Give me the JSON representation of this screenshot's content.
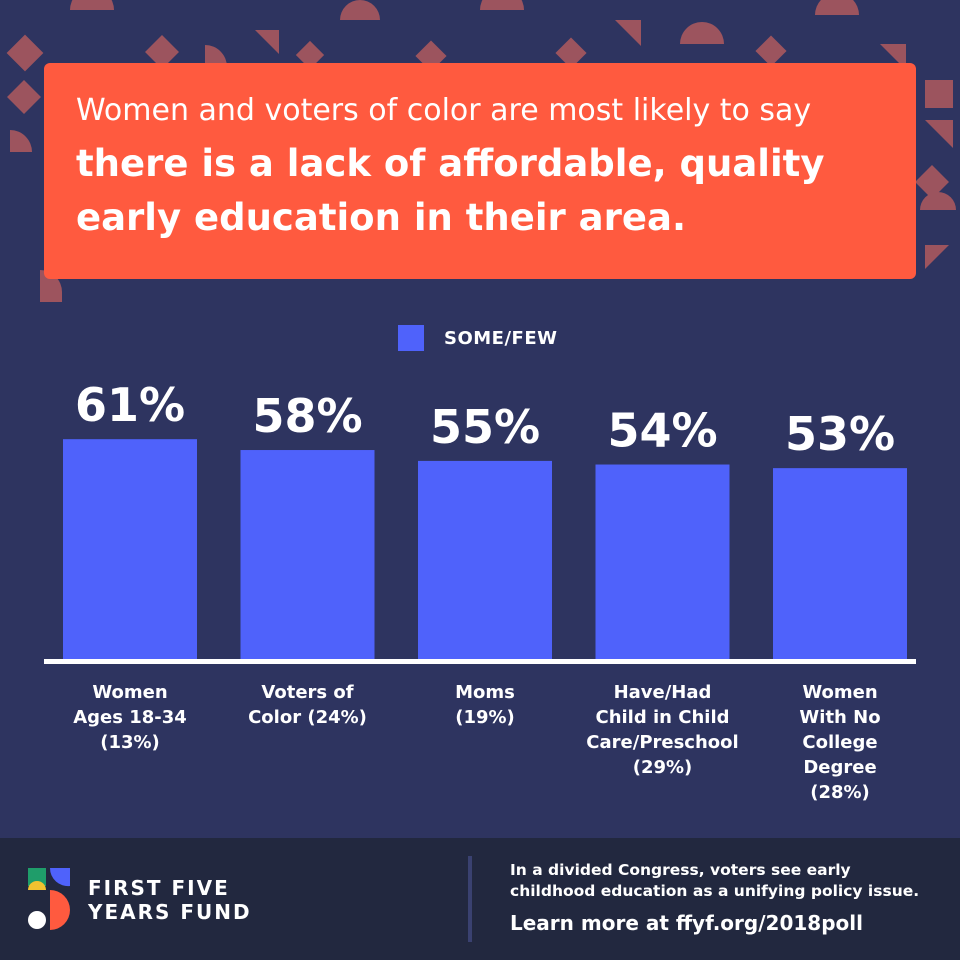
{
  "headline": {
    "light": "Women and voters of color are most likely to say",
    "bold_line1": "there is a lack of affordable, quality",
    "bold_line2": "early education in their area."
  },
  "colors": {
    "background": "#2e3460",
    "headline_box": "#ff5a3f",
    "bar": "#4f62fb",
    "footer": "#22283f",
    "shape": "#b85656"
  },
  "chart_data": {
    "type": "bar",
    "legend": {
      "label": "SOME/FEW",
      "position": "top-center"
    },
    "categories": [
      [
        "Women",
        "Ages 18-34",
        "(13%)"
      ],
      [
        "Voters of",
        "Color (24%)"
      ],
      [
        "Moms",
        "(19%)"
      ],
      [
        "Have/Had",
        "Child in Child",
        "Care/Preschool",
        "(29%)"
      ],
      [
        "Women",
        "With No",
        "College",
        "Degree",
        "(28%)"
      ]
    ],
    "series": [
      {
        "name": "SOME/FEW",
        "values": [
          61,
          58,
          55,
          54,
          53
        ],
        "labels": [
          "61%",
          "58%",
          "55%",
          "54%",
          "53%"
        ]
      }
    ],
    "grid": false
  },
  "footer": {
    "brand_line1": "FIRST FIVE",
    "brand_line2": "YEARS FUND",
    "blurb_line1": "In a divided Congress, voters see early",
    "blurb_line2": "childhood education as a unifying policy issue.",
    "cta": "Learn more at ffyf.org/2018poll"
  },
  "icons": [
    "decorative-shapes",
    "ffyf-logo-mark"
  ]
}
